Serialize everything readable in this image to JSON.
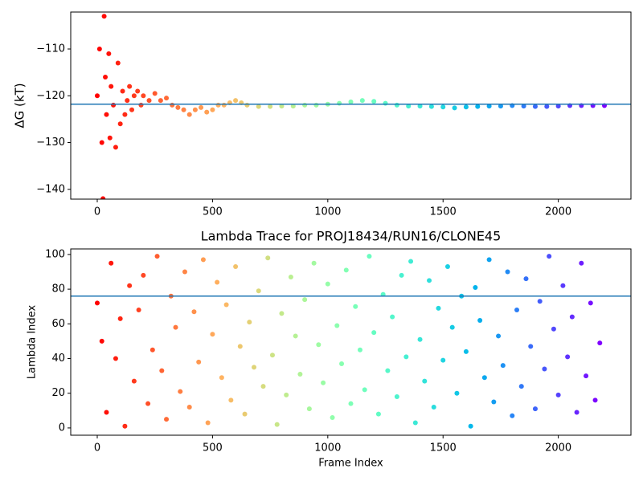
{
  "chart_data": [
    {
      "type": "scatter",
      "ylabel": "ΔG (kT)",
      "colormap": "rainbow_r",
      "hline": -121.8,
      "hline_color": "#1f77b4",
      "xlim": [
        -115,
        2315
      ],
      "ylim": [
        -142.1,
        -102.1
      ],
      "xticks": [
        0,
        500,
        1000,
        1500,
        2000
      ],
      "yticks": [
        {
          "value": -140,
          "label": "−140"
        },
        {
          "value": -130,
          "label": "−130"
        },
        {
          "value": -120,
          "label": "−120"
        },
        {
          "value": -110,
          "label": "−110"
        }
      ],
      "x": [
        0,
        10,
        20,
        25,
        30,
        35,
        40,
        50,
        55,
        60,
        70,
        80,
        90,
        100,
        110,
        120,
        130,
        140,
        150,
        160,
        175,
        190,
        200,
        225,
        250,
        275,
        300,
        325,
        350,
        375,
        400,
        425,
        450,
        475,
        500,
        525,
        550,
        575,
        600,
        625,
        650,
        700,
        750,
        800,
        850,
        900,
        950,
        1000,
        1050,
        1100,
        1150,
        1200,
        1250,
        1300,
        1350,
        1400,
        1450,
        1500,
        1550,
        1600,
        1650,
        1700,
        1750,
        1800,
        1850,
        1900,
        1950,
        2000,
        2050,
        2100,
        2150,
        2200
      ],
      "values": [
        -120,
        -110,
        -130,
        -142,
        -103,
        -116,
        -124,
        -111,
        -129,
        -118,
        -122,
        -131,
        -113,
        -126,
        -119,
        -124,
        -121,
        -118,
        -123,
        -120,
        -119,
        -122,
        -120,
        -121,
        -119.5,
        -121,
        -120.5,
        -122,
        -122.5,
        -123,
        -124,
        -123,
        -122.5,
        -123.5,
        -123,
        -122,
        -122,
        -121.5,
        -121,
        -121.5,
        -122,
        -122.3,
        -122.3,
        -122.2,
        -122.2,
        -122,
        -122,
        -121.8,
        -121.6,
        -121.3,
        -121,
        -121.2,
        -121.6,
        -122,
        -122.2,
        -122.2,
        -122.3,
        -122.4,
        -122.6,
        -122.4,
        -122.3,
        -122.2,
        -122.2,
        -122.1,
        -122.2,
        -122.3,
        -122.3,
        -122.2,
        -122.1,
        -122.1,
        -122.1,
        -122.1
      ]
    },
    {
      "type": "scatter",
      "title": "Lambda Trace for PROJ18434/RUN16/CLONE45",
      "xlabel": "Frame Index",
      "ylabel": "Lambda Index",
      "colormap": "rainbow_r",
      "hline": 76,
      "hline_color": "#1f77b4",
      "xlim": [
        -115,
        2315
      ],
      "ylim": [
        -4.2,
        103.2
      ],
      "xticks": [
        0,
        500,
        1000,
        1500,
        2000
      ],
      "yticks": [
        0,
        20,
        40,
        60,
        80,
        100
      ],
      "x": [
        0,
        20,
        40,
        60,
        80,
        100,
        120,
        140,
        160,
        180,
        200,
        220,
        240,
        260,
        280,
        300,
        320,
        340,
        360,
        380,
        400,
        420,
        440,
        460,
        480,
        500,
        520,
        540,
        560,
        580,
        600,
        620,
        640,
        660,
        680,
        700,
        720,
        740,
        760,
        780,
        800,
        820,
        840,
        860,
        880,
        900,
        920,
        940,
        960,
        980,
        1000,
        1020,
        1040,
        1060,
        1080,
        1100,
        1120,
        1140,
        1160,
        1180,
        1200,
        1220,
        1240,
        1260,
        1280,
        1300,
        1320,
        1340,
        1360,
        1380,
        1400,
        1420,
        1440,
        1460,
        1480,
        1500,
        1520,
        1540,
        1560,
        1580,
        1600,
        1620,
        1640,
        1660,
        1680,
        1700,
        1720,
        1740,
        1760,
        1780,
        1800,
        1820,
        1840,
        1860,
        1880,
        1900,
        1920,
        1940,
        1960,
        1980,
        2000,
        2020,
        2040,
        2060,
        2080,
        2100,
        2120,
        2140,
        2160,
        2180
      ],
      "values": [
        72,
        50,
        9,
        95,
        40,
        63,
        1,
        82,
        27,
        68,
        88,
        14,
        45,
        99,
        33,
        5,
        76,
        58,
        21,
        90,
        12,
        67,
        38,
        97,
        3,
        54,
        84,
        29,
        71,
        16,
        93,
        47,
        8,
        61,
        35,
        79,
        24,
        98,
        42,
        2,
        66,
        19,
        87,
        53,
        31,
        74,
        11,
        95,
        48,
        26,
        83,
        6,
        59,
        37,
        91,
        14,
        70,
        45,
        22,
        99,
        55,
        8,
        77,
        33,
        64,
        18,
        88,
        41,
        96,
        3,
        51,
        27,
        85,
        12,
        69,
        39,
        93,
        58,
        20,
        76,
        44,
        1,
        81,
        62,
        29,
        97,
        15,
        53,
        36,
        90,
        7,
        68,
        24,
        86,
        47,
        11,
        73,
        34,
        99,
        57,
        19,
        82,
        41,
        64,
        9,
        95,
        30,
        72,
        16,
        49
      ]
    }
  ]
}
